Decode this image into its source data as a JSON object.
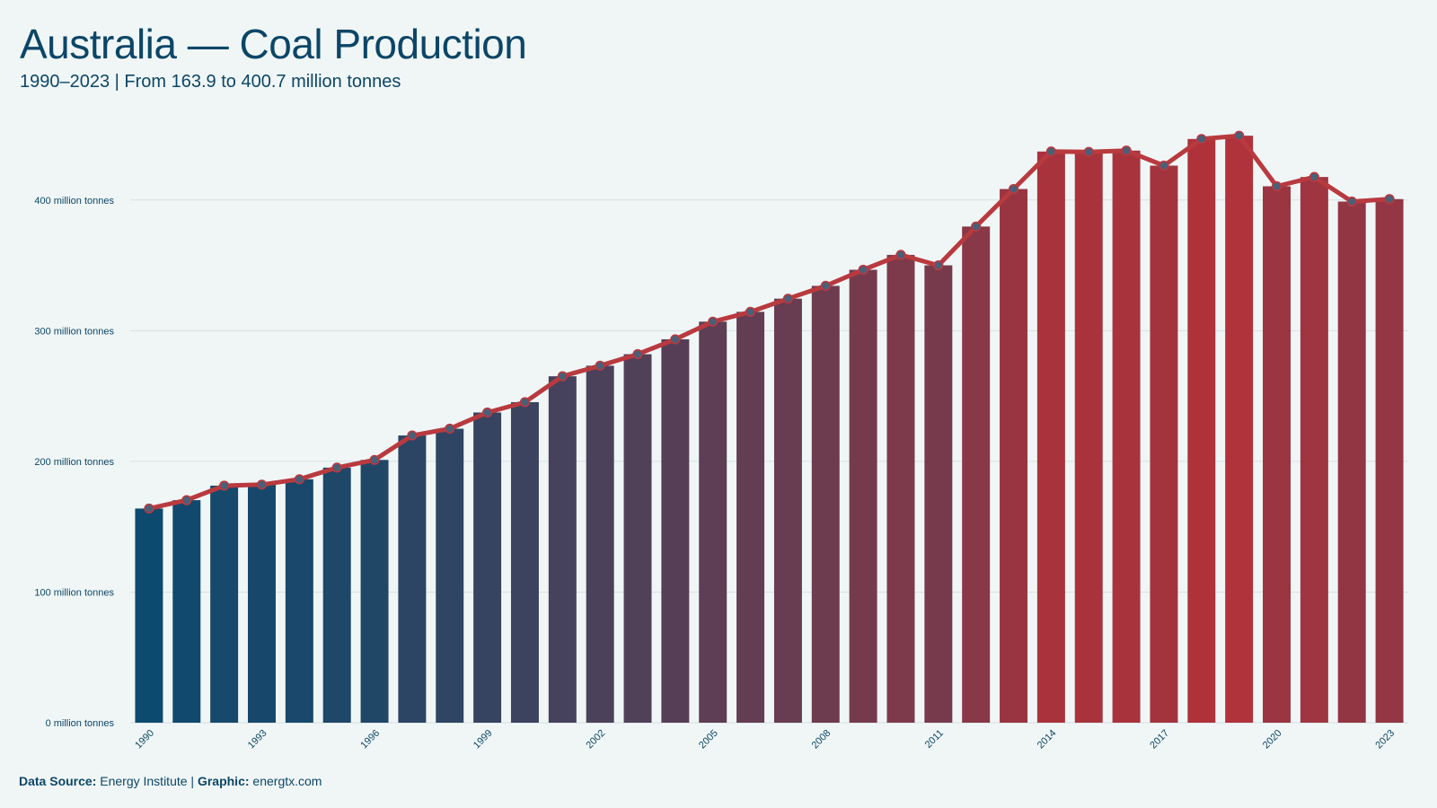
{
  "header": {
    "title": "Australia — Coal Production",
    "subtitle": "1990–2023 | From 163.9 to 400.7 million tonnes"
  },
  "footer": {
    "source_label": "Data Source:",
    "source_value": "Energy Institute",
    "separator": "|",
    "graphic_label": "Graphic:",
    "graphic_value": "energtx.com"
  },
  "colors": {
    "background": "#f0f6f6",
    "text": "#0c4667",
    "bar_start": "#0c4a6e",
    "bar_end": "#b0323a",
    "line": "#b83a3f",
    "point_fill": "#4a5f78",
    "grid": "#d6dfe2"
  },
  "chart_data": {
    "type": "bar",
    "title": "Australia — Coal Production",
    "subtitle": "1990–2023 | From 163.9 to 400.7 million tonnes",
    "xlabel": "",
    "ylabel": "",
    "ylim": [
      0,
      450
    ],
    "y_ticks": [
      0,
      100,
      200,
      300,
      400
    ],
    "y_tick_labels": [
      "0 million tonnes",
      "100 million tonnes",
      "200 million tonnes",
      "300 million tonnes",
      "400 million tonnes"
    ],
    "grid": true,
    "overlay_line": true,
    "categories": [
      "1990",
      "1991",
      "1992",
      "1993",
      "1994",
      "1995",
      "1996",
      "1997",
      "1998",
      "1999",
      "2000",
      "2001",
      "2002",
      "2003",
      "2004",
      "2005",
      "2006",
      "2007",
      "2008",
      "2009",
      "2010",
      "2011",
      "2012",
      "2013",
      "2014",
      "2015",
      "2016",
      "2017",
      "2018",
      "2019",
      "2020",
      "2021",
      "2022",
      "2023"
    ],
    "x_tick_labels": [
      "1990",
      "1993",
      "1996",
      "1999",
      "2002",
      "2005",
      "2008",
      "2011",
      "2014",
      "2017",
      "2020",
      "2023"
    ],
    "values": [
      163.9,
      170.3,
      181.4,
      182.2,
      186.3,
      195.2,
      201.1,
      219.8,
      225.0,
      237.4,
      245.3,
      265.1,
      273.2,
      282.0,
      293.4,
      306.9,
      314.4,
      324.5,
      334.3,
      346.6,
      358.0,
      350.0,
      379.7,
      408.4,
      437.1,
      436.8,
      437.8,
      426.3,
      446.7,
      449.2,
      410.5,
      417.6,
      398.8,
      400.7
    ]
  }
}
